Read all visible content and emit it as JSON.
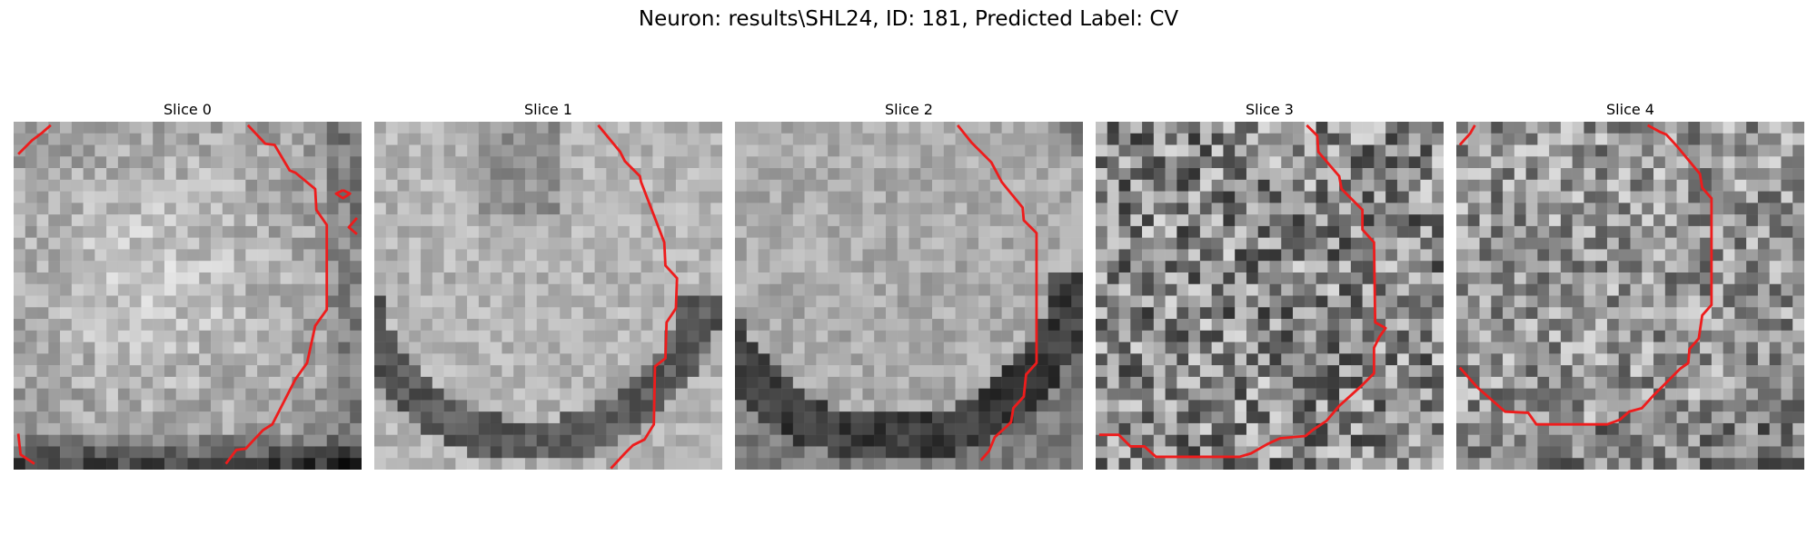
{
  "figure": {
    "title": "Neuron: results\\SHL24, ID: 181, Predicted Label: CV",
    "contour_color": "#ee1c1c",
    "panels": [
      {
        "title": "Slice 0",
        "style": "bright-center"
      },
      {
        "title": "Slice 1",
        "style": "soft-ring"
      },
      {
        "title": "Slice 2",
        "style": "dark-ring"
      },
      {
        "title": "Slice 3",
        "style": "noisy"
      },
      {
        "title": "Slice 4",
        "style": "noisy-light"
      }
    ]
  }
}
